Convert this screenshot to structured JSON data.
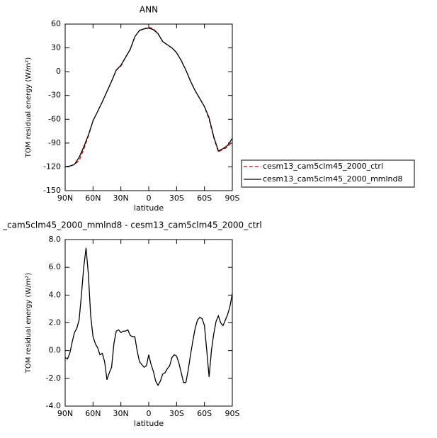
{
  "chart_data": [
    {
      "type": "line",
      "title": "ANN",
      "xlabel": "latitude",
      "ylabel": "TOM residual energy (W/m²)",
      "x": [
        90,
        85,
        80,
        75,
        70,
        65,
        60,
        55,
        50,
        45,
        40,
        35,
        30,
        25,
        20,
        15,
        10,
        5,
        0,
        -5,
        -10,
        -15,
        -20,
        -25,
        -30,
        -35,
        -40,
        -45,
        -50,
        -55,
        -60,
        -65,
        -70,
        -75,
        -80,
        -85,
        -90
      ],
      "xlim": [
        90,
        -90
      ],
      "xticks": [
        {
          "value": 90,
          "label": "90N"
        },
        {
          "value": 60,
          "label": "60N"
        },
        {
          "value": 30,
          "label": "30N"
        },
        0,
        {
          "value": -30,
          "label": "30S"
        },
        {
          "value": -60,
          "label": "60S"
        },
        {
          "value": -90,
          "label": "90S"
        }
      ],
      "ylim": [
        -150,
        60
      ],
      "yticks": [
        60,
        30,
        0,
        -30,
        -60,
        -90,
        -120,
        -150
      ],
      "legend": "right",
      "series": [
        {
          "name": "cesm13_cam5clm45_2000_ctrl",
          "color": "#cc0000",
          "dashed": true,
          "values": [
            -120,
            -119,
            -117,
            -112,
            -98,
            -81,
            -62,
            -50,
            -38,
            -25,
            -12,
            2,
            7,
            18,
            28,
            44,
            52,
            54,
            56,
            54,
            48,
            38,
            34,
            30,
            24,
            14,
            2,
            -12,
            -24,
            -34,
            -44,
            -60,
            -83,
            -101,
            -98,
            -95,
            -88
          ]
        },
        {
          "name": "cesm13_cam5clm45_2000_mmlnd8",
          "color": "#000000",
          "dashed": false,
          "values": [
            -120,
            -119,
            -117,
            -108,
            -95,
            -80,
            -62,
            -50,
            -38,
            -25,
            -12,
            2,
            8,
            18,
            28,
            44,
            52,
            54,
            55,
            53,
            48,
            38,
            34,
            30,
            24,
            14,
            2,
            -12,
            -24,
            -34,
            -44,
            -58,
            -82,
            -100,
            -97,
            -93,
            -84
          ]
        }
      ]
    },
    {
      "type": "line",
      "title": "_cam5clm45_2000_mmlnd8 - cesm13_cam5clm45_2000_ctrl",
      "xlabel": "latitude",
      "ylabel": "TOM residual energy (W/m²)",
      "x": [
        90,
        87.5,
        85,
        82.5,
        80,
        77.5,
        75,
        72.5,
        70,
        67.5,
        65,
        62.5,
        60,
        57.5,
        55,
        52.5,
        50,
        47.5,
        45,
        42.5,
        40,
        37.5,
        35,
        32.5,
        30,
        27.5,
        25,
        22.5,
        20,
        17.5,
        15,
        12.5,
        10,
        7.5,
        5,
        2.5,
        0,
        -2.5,
        -5,
        -7.5,
        -10,
        -12.5,
        -15,
        -17.5,
        -20,
        -22.5,
        -25,
        -27.5,
        -30,
        -32.5,
        -35,
        -37.5,
        -40,
        -42.5,
        -45,
        -47.5,
        -50,
        -52.5,
        -55,
        -57.5,
        -60,
        -62.5,
        -65,
        -67.5,
        -70,
        -72.5,
        -75,
        -77.5,
        -80,
        -82.5,
        -85,
        -87.5,
        -90
      ],
      "xlim": [
        90,
        -90
      ],
      "xticks": [
        {
          "value": 90,
          "label": "90N"
        },
        {
          "value": 60,
          "label": "60N"
        },
        {
          "value": 30,
          "label": "30N"
        },
        0,
        {
          "value": -30,
          "label": "30S"
        },
        {
          "value": -60,
          "label": "60S"
        },
        {
          "value": -90,
          "label": "90S"
        }
      ],
      "ylim": [
        -4,
        8
      ],
      "yticks": [
        {
          "value": 8,
          "label": "8.0"
        },
        {
          "value": 6,
          "label": "6.0"
        },
        {
          "value": 4,
          "label": "4.0"
        },
        {
          "value": 2,
          "label": "2.0"
        },
        {
          "value": 0,
          "label": "0.0"
        },
        {
          "value": -2,
          "label": "-2.0"
        },
        {
          "value": -4,
          "label": "-4.0"
        }
      ],
      "series": [
        {
          "color": "#000000",
          "dashed": false,
          "values": [
            -0.5,
            -0.6,
            -0.2,
            0.6,
            1.3,
            1.6,
            2.2,
            4.0,
            6.0,
            7.4,
            5.5,
            2.5,
            1.0,
            0.5,
            0.2,
            -0.3,
            -0.2,
            -0.8,
            -2.1,
            -1.6,
            -1.2,
            0.5,
            1.4,
            1.5,
            1.3,
            1.4,
            1.4,
            1.5,
            1.1,
            1.0,
            1.0,
            0.0,
            -0.8,
            -1.0,
            -1.2,
            -1.1,
            -0.3,
            -1.0,
            -1.5,
            -2.2,
            -2.5,
            -2.2,
            -1.7,
            -1.6,
            -1.3,
            -1.1,
            -0.5,
            -0.3,
            -0.4,
            -0.9,
            -1.6,
            -2.3,
            -2.3,
            -1.4,
            -0.3,
            0.7,
            1.6,
            2.2,
            2.4,
            2.3,
            1.8,
            0.0,
            -1.9,
            0.0,
            1.2,
            2.1,
            2.5,
            2.0,
            1.8,
            2.2,
            2.6,
            3.2,
            4.1
          ]
        }
      ]
    }
  ]
}
